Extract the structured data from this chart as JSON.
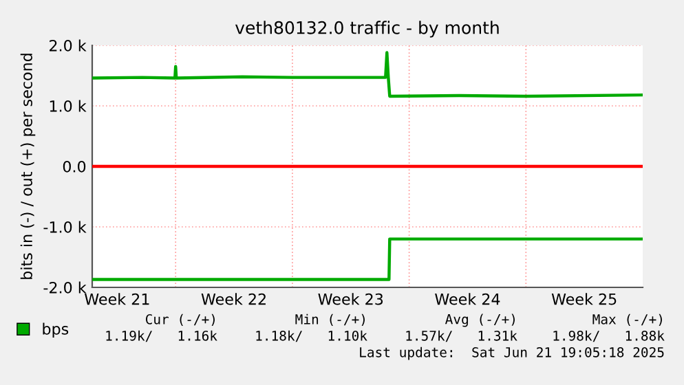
{
  "chart_data": {
    "type": "line",
    "title": "veth80132.0 traffic - by month",
    "ylabel": "bits in (-) / out (+) per second",
    "xlim": [
      "2025-05-21",
      "2025-06-23"
    ],
    "xticks": [
      {
        "value": "2025-05-22T12:00",
        "label": "Week 21"
      },
      {
        "value": "2025-05-26",
        "label": null
      },
      {
        "value": "2025-05-29T12:00",
        "label": "Week 22"
      },
      {
        "value": "2025-06-02",
        "label": null
      },
      {
        "value": "2025-06-05T12:00",
        "label": "Week 23"
      },
      {
        "value": "2025-06-09",
        "label": null
      },
      {
        "value": "2025-06-12T12:00",
        "label": "Week 24"
      },
      {
        "value": "2025-06-16",
        "label": null
      },
      {
        "value": "2025-06-19T12:00",
        "label": "Week 25"
      }
    ],
    "ylim": [
      -2000,
      2000
    ],
    "yticks": [
      {
        "value": -2000,
        "label": "-2.0 k"
      },
      {
        "value": -1000,
        "label": "-1.0 k"
      },
      {
        "value": 0,
        "label": "0.0"
      },
      {
        "value": 1000,
        "label": "1.0 k"
      },
      {
        "value": 2000,
        "label": "2.0 k"
      }
    ],
    "series": [
      {
        "name": "bps",
        "color": "#00aa00",
        "x": [
          "2025-05-21",
          "2025-05-24",
          "2025-05-25T23:00",
          "2025-05-26T00:00",
          "2025-05-26T01:00",
          "2025-05-30",
          "2025-06-02",
          "2025-06-07T14:00",
          "2025-06-07T16:00",
          "2025-06-07T18:00",
          "2025-06-07T20:00",
          "2025-06-12",
          "2025-06-16",
          "2025-06-22T22:00"
        ],
        "values": [
          1460,
          1470,
          1460,
          1650,
          1460,
          1480,
          1470,
          1470,
          1880,
          1470,
          1160,
          1170,
          1160,
          1180
        ]
      },
      {
        "color": "#00aa00",
        "x": [
          "2025-05-21",
          "2025-06-07T19:00",
          "2025-06-07T20:00",
          "2025-06-22T22:00"
        ],
        "values": [
          -1870,
          -1870,
          -1200,
          -1200
        ]
      }
    ],
    "ref_lines": [
      {
        "axis": "y",
        "value": 0,
        "color": "#ff0000"
      }
    ],
    "grid": true,
    "legend": "bottom left",
    "marker": "none",
    "line_style": "solid",
    "annotations": [
      "Cur (-/+)",
      "Min (-/+)",
      "Avg (-/+)",
      "Max (-/+)",
      "1.19k/   1.16k",
      "1.18k/   1.10k",
      "1.57k/   1.31k",
      "1.98k/   1.88k",
      "Last update:  Sat Jun 21 19:05:18 2025"
    ]
  }
}
